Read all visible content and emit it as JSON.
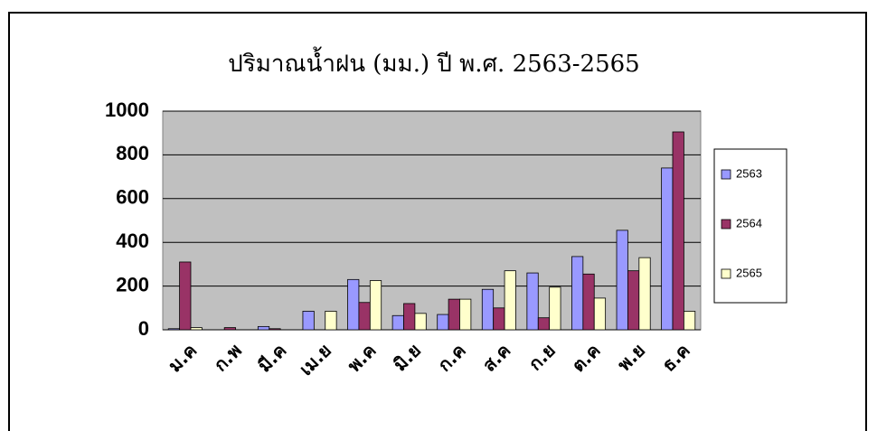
{
  "chart_data": {
    "type": "bar",
    "title": "ปริมาณน้ำฝน (มม.) ปี พ.ศ. 2563-2565",
    "categories": [
      "ม.ค",
      "ก.พ",
      "มี.ค",
      "เม.ย",
      "พ.ค",
      "มิ.ย",
      "ก.ค",
      "ส.ค",
      "ก.ย",
      "ต.ค",
      "พ.ย",
      "ธ.ค"
    ],
    "series": [
      {
        "name": "2563",
        "color": "#9999ff",
        "values": [
          5,
          0,
          15,
          85,
          230,
          65,
          70,
          185,
          260,
          335,
          455,
          740
        ]
      },
      {
        "name": "2564",
        "color": "#993366",
        "values": [
          310,
          10,
          5,
          0,
          125,
          120,
          140,
          100,
          55,
          255,
          270,
          905
        ]
      },
      {
        "name": "2565",
        "color": "#ffffcc",
        "values": [
          10,
          0,
          0,
          85,
          225,
          75,
          140,
          270,
          195,
          145,
          330,
          85
        ]
      }
    ],
    "ylim": [
      0,
      1000
    ],
    "yticks": [
      0,
      200,
      400,
      600,
      800,
      1000
    ],
    "grid": true,
    "legend": "right"
  }
}
